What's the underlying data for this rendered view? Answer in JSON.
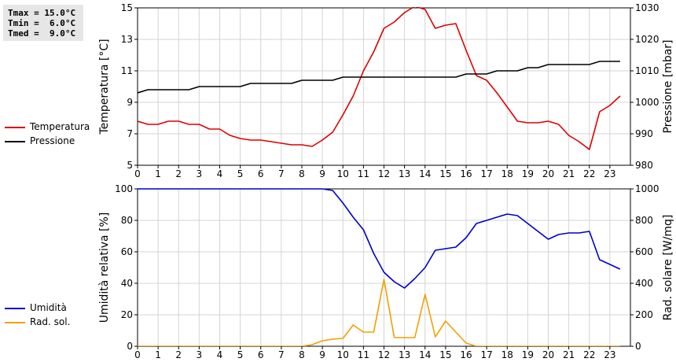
{
  "stats": {
    "tmax": "Tmax = 15.0°C",
    "tmin": "Tmin =  6.0°C",
    "tmed": "Tmed =  9.0°C"
  },
  "legend_top": [
    {
      "label": "Temperatura",
      "color": "#dd0000"
    },
    {
      "label": "Pressione",
      "color": "#000000"
    }
  ],
  "legend_bottom": [
    {
      "label": "Umidità",
      "color": "#0000cc"
    },
    {
      "label": "Rad. sol.",
      "color": "#f0a000"
    }
  ],
  "chart_data": [
    {
      "type": "line",
      "xlabel": "",
      "ylabel": "Temperatura [°C]",
      "y2label": "Pressione [mbar]",
      "xlim": [
        0,
        24
      ],
      "ylim": [
        5,
        15
      ],
      "y2lim": [
        980,
        1030
      ],
      "xticks": [
        "0",
        "1",
        "2",
        "3",
        "4",
        "5",
        "6",
        "7",
        "8",
        "9",
        "10",
        "11",
        "12",
        "13",
        "14",
        "15",
        "16",
        "17",
        "18",
        "19",
        "20",
        "21",
        "22",
        "23"
      ],
      "yticks": [
        "5",
        "7",
        "9",
        "11",
        "13",
        "15"
      ],
      "y2ticks": [
        "980",
        "990",
        "1000",
        "1010",
        "1020",
        "1030"
      ],
      "grid": true,
      "series": [
        {
          "name": "Temperatura",
          "axis": "left",
          "color": "#dd0000",
          "x": [
            0,
            0.5,
            1,
            1.5,
            2,
            2.5,
            3,
            3.5,
            4,
            4.5,
            5,
            5.5,
            6,
            6.5,
            7,
            7.5,
            8,
            8.5,
            9,
            9.5,
            10,
            10.5,
            11,
            11.5,
            12,
            12.5,
            13,
            13.5,
            14,
            14.5,
            15,
            15.5,
            16,
            16.5,
            17,
            17.5,
            18,
            18.5,
            19,
            19.5,
            20,
            20.5,
            21,
            21.5,
            22,
            22.5,
            23,
            23.5
          ],
          "y": [
            7.8,
            7.6,
            7.6,
            7.8,
            7.8,
            7.6,
            7.6,
            7.3,
            7.3,
            6.9,
            6.7,
            6.6,
            6.6,
            6.5,
            6.4,
            6.3,
            6.3,
            6.2,
            6.6,
            7.1,
            8.2,
            9.4,
            11.0,
            12.2,
            13.7,
            14.1,
            14.7,
            15.1,
            14.9,
            13.7,
            13.9,
            14.0,
            12.3,
            10.7,
            10.4,
            9.6,
            8.7,
            7.8,
            7.7,
            7.7,
            7.8,
            7.6,
            6.9,
            6.5,
            6.0,
            8.4,
            8.8,
            9.4
          ]
        },
        {
          "name": "Pressione",
          "axis": "right",
          "color": "#000000",
          "x": [
            0,
            0.5,
            1,
            1.5,
            2,
            2.5,
            3,
            3.5,
            4,
            4.5,
            5,
            5.5,
            6,
            6.5,
            7,
            7.5,
            8,
            8.5,
            9,
            9.5,
            10,
            10.5,
            11,
            11.5,
            12,
            12.5,
            13,
            13.5,
            14,
            14.5,
            15,
            15.5,
            16,
            16.5,
            17,
            17.5,
            18,
            18.5,
            19,
            19.5,
            20,
            20.5,
            21,
            21.5,
            22,
            22.5,
            23,
            23.5
          ],
          "y": [
            1003,
            1004,
            1004,
            1004,
            1004,
            1004,
            1005,
            1005,
            1005,
            1005,
            1005,
            1006,
            1006,
            1006,
            1006,
            1006,
            1007,
            1007,
            1007,
            1007,
            1008,
            1008,
            1008,
            1008,
            1008,
            1008,
            1008,
            1008,
            1008,
            1008,
            1008,
            1008,
            1009,
            1009,
            1009,
            1010,
            1010,
            1010,
            1011,
            1011,
            1012,
            1012,
            1012,
            1012,
            1012,
            1013,
            1013,
            1013
          ]
        }
      ]
    },
    {
      "type": "line",
      "xlabel": "",
      "ylabel": "Umidità relativa [%]",
      "y2label": "Rad. solare [W/mq]",
      "xlim": [
        0,
        24
      ],
      "ylim": [
        0,
        100
      ],
      "y2lim": [
        0,
        1000
      ],
      "xticks": [
        "0",
        "1",
        "2",
        "3",
        "4",
        "5",
        "6",
        "7",
        "8",
        "9",
        "10",
        "11",
        "12",
        "13",
        "14",
        "15",
        "16",
        "17",
        "18",
        "19",
        "20",
        "21",
        "22",
        "23"
      ],
      "yticks": [
        "0",
        "20",
        "40",
        "60",
        "80",
        "100"
      ],
      "y2ticks": [
        "0",
        "200",
        "400",
        "600",
        "800",
        "1000"
      ],
      "grid": true,
      "series": [
        {
          "name": "Umidità",
          "axis": "left",
          "color": "#0000cc",
          "x": [
            0,
            0.5,
            1,
            1.5,
            2,
            2.5,
            3,
            3.5,
            4,
            4.5,
            5,
            5.5,
            6,
            6.5,
            7,
            7.5,
            8,
            8.5,
            9,
            9.5,
            10,
            10.5,
            11,
            11.5,
            12,
            12.5,
            13,
            13.5,
            14,
            14.5,
            15,
            15.5,
            16,
            16.5,
            17,
            17.5,
            18,
            18.5,
            19,
            19.5,
            20,
            20.5,
            21,
            21.5,
            22,
            22.5,
            23,
            23.5
          ],
          "y": [
            100,
            100,
            100,
            100,
            100,
            100,
            100,
            100,
            100,
            100,
            100,
            100,
            100,
            100,
            100,
            100,
            100,
            100,
            100,
            99,
            91,
            82,
            74,
            59,
            47,
            41,
            37,
            43,
            50,
            61,
            62,
            63,
            69,
            78,
            80,
            82,
            84,
            83,
            78,
            73,
            68,
            71,
            72,
            72,
            73,
            55,
            52,
            49
          ]
        },
        {
          "name": "Rad. sol.",
          "axis": "right",
          "color": "#f0a000",
          "x": [
            0,
            0.5,
            1,
            1.5,
            2,
            2.5,
            3,
            3.5,
            4,
            4.5,
            5,
            5.5,
            6,
            6.5,
            7,
            7.5,
            8,
            8.5,
            9,
            9.5,
            10,
            10.5,
            11,
            11.5,
            12,
            12.5,
            13,
            13.5,
            14,
            14.5,
            15,
            15.5,
            16,
            16.5,
            17,
            17.5,
            18,
            18.5,
            19,
            19.5,
            20,
            20.5,
            21,
            21.5,
            22,
            22.5,
            23,
            23.5
          ],
          "y": [
            0,
            0,
            0,
            0,
            0,
            0,
            0,
            0,
            0,
            0,
            0,
            0,
            0,
            0,
            0,
            0,
            0,
            10,
            35,
            45,
            50,
            135,
            90,
            90,
            425,
            55,
            55,
            55,
            330,
            60,
            160,
            90,
            20,
            0,
            0,
            0,
            0,
            0,
            0,
            0,
            0,
            0,
            0,
            0,
            0,
            0,
            0,
            0
          ]
        }
      ]
    }
  ]
}
